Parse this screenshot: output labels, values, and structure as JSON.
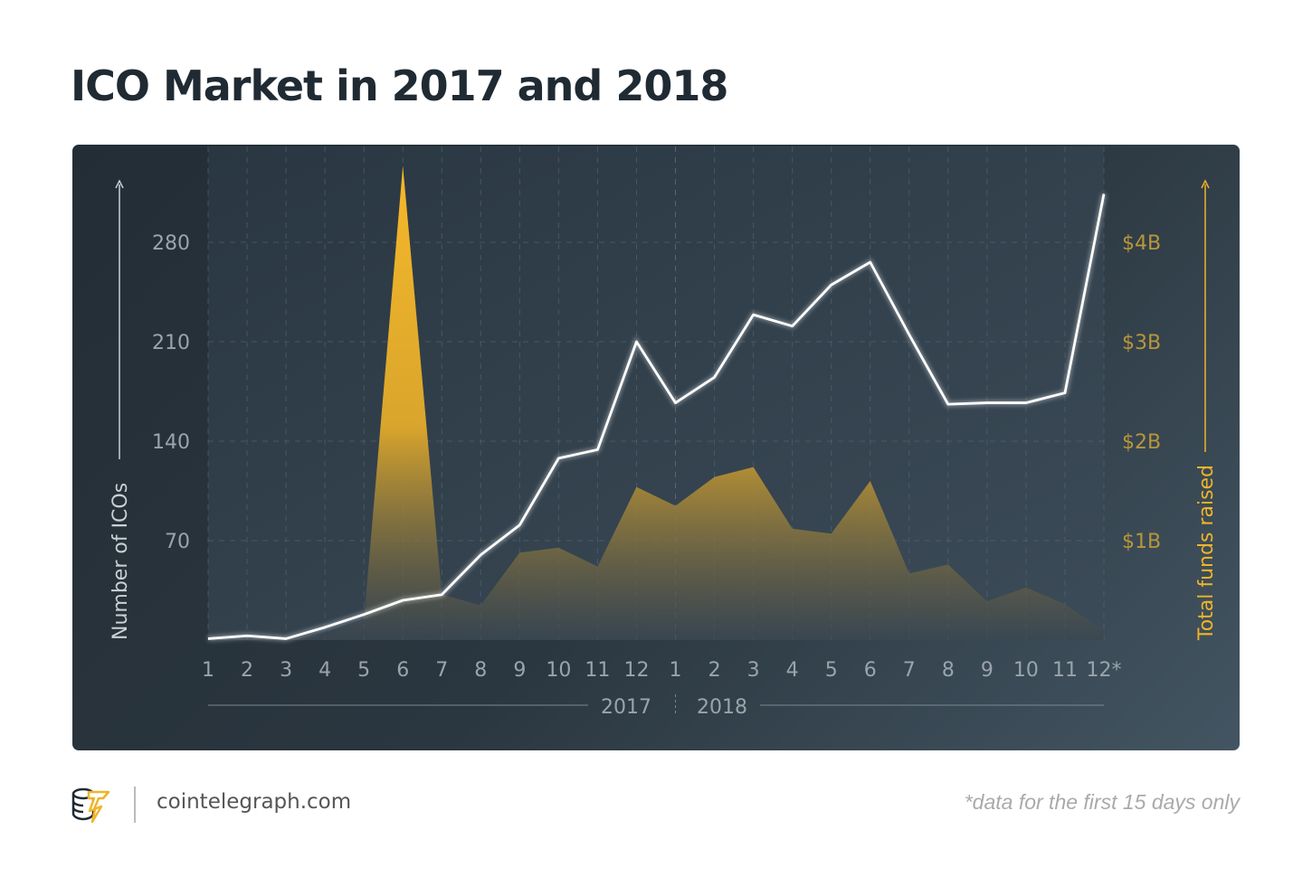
{
  "title": "ICO Market in 2017 and 2018",
  "footer": {
    "site": "cointelegraph.com",
    "note": "*data for the first 15 days only",
    "logo_icon": "cointelegraph-logo-icon"
  },
  "colors": {
    "line": "#ffffff",
    "area": "#f0b429",
    "left_axis": "#9aa4ab",
    "right_axis": "#b8963a"
  },
  "chart_data": {
    "type": "line+area",
    "title": "ICO Market in 2017 and 2018",
    "x": [
      "1",
      "2",
      "3",
      "4",
      "5",
      "6",
      "7",
      "8",
      "9",
      "10",
      "11",
      "12",
      "1",
      "2",
      "3",
      "4",
      "5",
      "6",
      "7",
      "8",
      "9",
      "10",
      "11",
      "12*"
    ],
    "year_labels": [
      "2017",
      "2018"
    ],
    "y_left": {
      "label": "Number of ICOs",
      "ticks": [
        "70",
        "140",
        "210",
        "280"
      ],
      "tick_values": [
        70,
        140,
        210,
        280
      ],
      "lim": [
        0,
        350
      ]
    },
    "y_right": {
      "label": "Total funds raised",
      "ticks": [
        "$1B",
        "$2B",
        "$3B",
        "$4B"
      ],
      "tick_values": [
        1,
        2,
        3,
        4
      ],
      "lim": [
        0,
        5
      ],
      "unit": "billion USD"
    },
    "grid": true,
    "series": [
      {
        "name": "Number of ICOs",
        "type": "line",
        "axis": "left",
        "values": [
          1,
          3,
          1,
          9,
          18,
          28,
          32,
          60,
          81,
          128,
          134,
          210,
          167,
          185,
          229,
          221,
          250,
          266,
          215,
          166,
          167,
          167,
          174,
          314
        ]
      },
      {
        "name": "Total funds raised",
        "type": "area",
        "axis": "right",
        "values": [
          0,
          0.01,
          0.02,
          0.05,
          0.2,
          4.77,
          0.46,
          0.35,
          0.88,
          0.93,
          0.74,
          1.54,
          1.35,
          1.64,
          1.74,
          1.12,
          1.07,
          1.6,
          0.67,
          0.76,
          0.39,
          0.53,
          0.36,
          0.1
        ]
      }
    ]
  }
}
